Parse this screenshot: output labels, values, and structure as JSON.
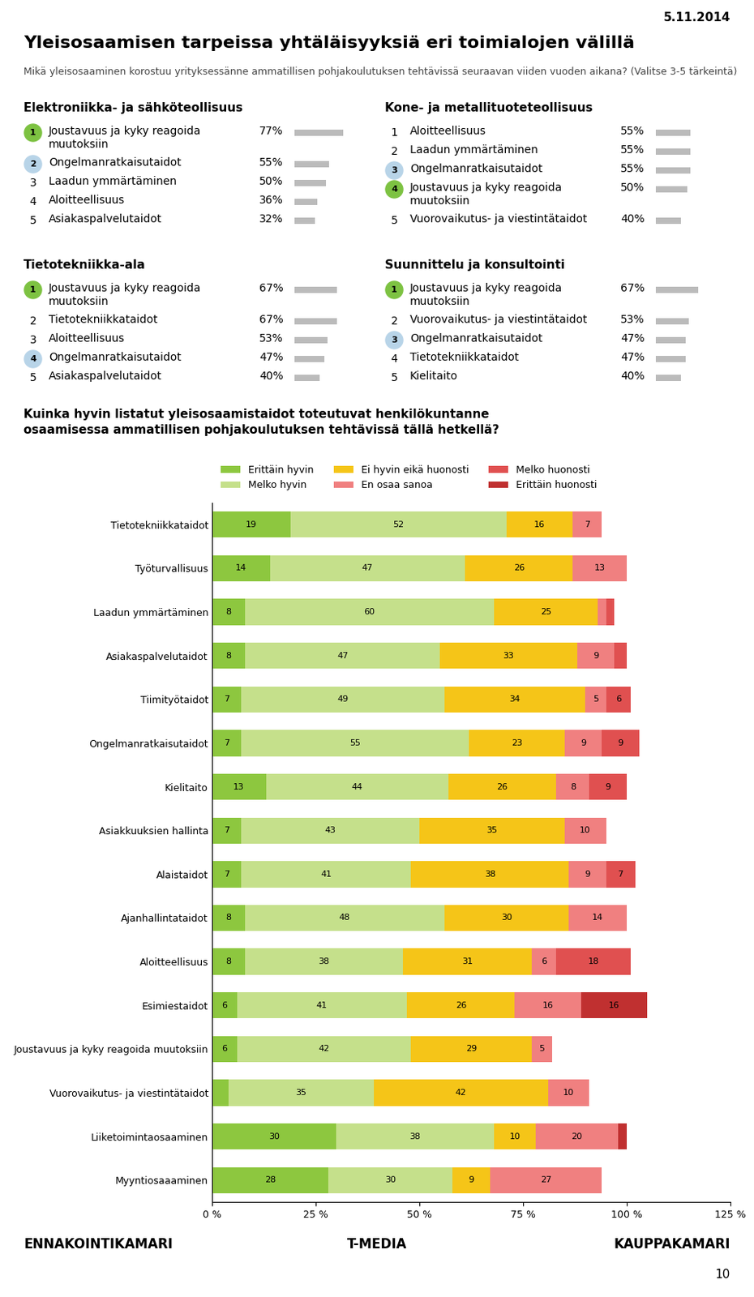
{
  "title": "Yleisosaamisen tarpeissa yhtäläisyyksiä eri toimialojen välillä",
  "subtitle": "Mikä yleisosaaminen korostuu yrityksessänne ammatillisen pohjakoulutuksen tehtävissä seuraavan viiden vuoden aikana? (Valitse 3-5 tärkeintä)",
  "annotations": [
    "5.11.2014",
    "ENNAKOINTIKAMARI",
    "T-MEDIA",
    "KAUPPAKAMARI",
    "10"
  ],
  "chart_data": [
    {
      "type": "list",
      "title": "Elektroniikka- ja sähköteollisuus",
      "categories": [
        "Joustavuus ja kyky reagoida\nmuutoksiin",
        "Ongelmanratkaisutaidot",
        "Laadun ymmärtäminen",
        "Aloitteellisuus",
        "Asiakaspalvelutaidot"
      ],
      "ranks": [
        1,
        2,
        3,
        4,
        5
      ],
      "values": [
        77,
        55,
        50,
        36,
        32
      ],
      "value_labels": [
        "77%",
        "55%",
        "50%",
        "36%",
        "32%"
      ],
      "colors": [
        "#7DC242",
        "#B8D4E8",
        null,
        null,
        null
      ]
    },
    {
      "type": "list",
      "title": "Kone- ja metallituoteteollisuus",
      "categories": [
        "Aloitteellisuus",
        "Laadun ymmärtäminen",
        "Ongelmanratkaisutaidot",
        "Joustavuus ja kyky reagoida\nmuutoksiin",
        "Vuorovaikutus- ja viestintätaidot"
      ],
      "ranks": [
        1,
        2,
        3,
        4,
        5
      ],
      "values": [
        55,
        55,
        55,
        50,
        40
      ],
      "value_labels": [
        "55%",
        "55%",
        "55%",
        "50%",
        "40%"
      ],
      "colors": [
        null,
        null,
        "#B8D4E8",
        "#7DC242",
        null
      ]
    },
    {
      "type": "list",
      "title": "Tietotekniikka-ala",
      "categories": [
        "Joustavuus ja kyky reagoida\nmuutoksiin",
        "Tietotekniikkataidot",
        "Aloitteellisuus",
        "Ongelmanratkaisutaidot",
        "Asiakaspalvelutaidot"
      ],
      "ranks": [
        1,
        2,
        3,
        4,
        5
      ],
      "values": [
        67,
        67,
        53,
        47,
        40
      ],
      "value_labels": [
        "67%",
        "67%",
        "53%",
        "47%",
        "40%"
      ],
      "colors": [
        "#7DC242",
        null,
        null,
        "#B8D4E8",
        null
      ]
    },
    {
      "type": "list",
      "title": "Suunnittelu ja konsultointi",
      "categories": [
        "Joustavuus ja kyky reagoida\nmuutoksiin",
        "Vuorovaikutus- ja viestintätaidot",
        "Ongelmanratkaisutaidot",
        "Tietotekniikkataidot",
        "Kielitaito"
      ],
      "ranks": [
        1,
        2,
        3,
        4,
        5
      ],
      "values": [
        67,
        53,
        47,
        47,
        40
      ],
      "value_labels": [
        "67%",
        "53%",
        "47%",
        "47%",
        "40%"
      ],
      "colors": [
        "#7DC242",
        null,
        "#B8D4E8",
        null,
        null
      ]
    },
    {
      "type": "bar",
      "orientation": "horizontal",
      "stacked": true,
      "data_labels": true,
      "legend": "lower left",
      "title": "Kuinka hyvin listatut yleisosaamistaidot toteutuvat henkilökuntanne\nosaamisessa ammatillisen pohjakoulutuksen tehtävissä tällä hetkellä?",
      "categories": [
        "Tietotekniikkataidot",
        "Työturvallisuus",
        "Laadun ymmärtäminen",
        "Asiakaspalvelutaidot",
        "Tiimityötaidot",
        "Ongelmanratkaisutaidot",
        "Kielitaito",
        "Asiakkuuksien hallinta",
        "Alaistaidot",
        "Ajanhallintataidot",
        "Aloitteellisuus",
        "Esimiestaidot",
        "Joustavuus ja kyky reagoida muutoksiin",
        "Vuorovaikutus- ja viestintätaidot",
        "Liiketoimintaosaaminen",
        "Myyntiosaaaminen"
      ],
      "series": [
        {
          "name": "Erittäin hyvin",
          "color": "#8DC73F",
          "values": [
            19,
            14,
            8,
            8,
            7,
            7,
            13,
            7,
            7,
            8,
            8,
            6,
            6,
            4,
            30,
            28
          ],
          "value_labels": [
            "19",
            "14",
            "8",
            "8",
            "7",
            "7",
            "13",
            "7",
            "7",
            "8",
            "8",
            "6",
            "6",
            null,
            "30",
            "28"
          ]
        },
        {
          "name": "Melko hyvin",
          "color": "#C5E08B",
          "values": [
            52,
            47,
            60,
            47,
            49,
            55,
            44,
            43,
            41,
            48,
            38,
            41,
            42,
            35,
            38,
            30
          ],
          "value_labels": [
            "52",
            "47",
            "60",
            "47",
            "49",
            "55",
            "44",
            "43",
            "41",
            "48",
            "38",
            "41",
            "42",
            "35",
            "38",
            "30"
          ]
        },
        {
          "name": "Ei hyvin eikä huonosti",
          "color": "#F5C518",
          "values": [
            16,
            26,
            25,
            33,
            34,
            23,
            26,
            35,
            38,
            30,
            31,
            26,
            29,
            42,
            10,
            9
          ],
          "value_labels": [
            "16",
            "26",
            "25",
            "33",
            "34",
            "23",
            "26",
            "35",
            "38",
            "30",
            "31",
            "26",
            "29",
            "42",
            "10",
            "9"
          ]
        },
        {
          "name": "En osaa sanoa",
          "color": "#F08080",
          "values": [
            7,
            13,
            2,
            9,
            5,
            9,
            8,
            10,
            9,
            14,
            6,
            16,
            5,
            10,
            20,
            27
          ],
          "value_labels": [
            "7",
            "13",
            null,
            "9",
            "5",
            "9",
            "8",
            "10",
            "9",
            "14",
            "6",
            "16",
            "5",
            "10",
            "20",
            "27"
          ]
        },
        {
          "name": "Melko huonosti",
          "color": "#E05050",
          "values": [
            0,
            0,
            2,
            3,
            6,
            9,
            9,
            0,
            7,
            0,
            18,
            0,
            0,
            0,
            0,
            0
          ],
          "value_labels": [
            null,
            null,
            null,
            null,
            "6",
            "9",
            "9",
            null,
            "7",
            null,
            "18",
            null,
            null,
            null,
            null,
            null
          ]
        },
        {
          "name": "Erittäin huonosti",
          "color": "#C03030",
          "values": [
            0,
            0,
            0,
            0,
            0,
            0,
            0,
            0,
            0,
            0,
            0,
            16,
            0,
            0,
            2,
            0
          ],
          "value_labels": [
            null,
            null,
            null,
            null,
            null,
            null,
            null,
            null,
            null,
            null,
            null,
            "16",
            null,
            null,
            null,
            null
          ]
        }
      ],
      "xlim": [
        0,
        125
      ],
      "xticks": [
        {
          "value": 0,
          "label": "0 %"
        },
        {
          "value": 25,
          "label": "25 %"
        },
        {
          "value": 50,
          "label": "50 %"
        },
        {
          "value": 75,
          "label": "75 %"
        },
        {
          "value": 100,
          "label": "100 %"
        },
        {
          "value": 125,
          "label": "125 %"
        }
      ]
    }
  ]
}
